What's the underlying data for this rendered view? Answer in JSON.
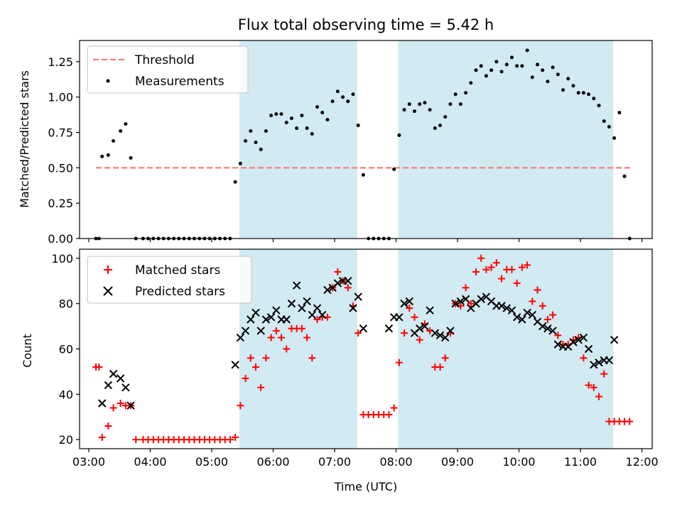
{
  "chart_data": [
    {
      "type": "scatter",
      "title": "Flux total observing time = 5.42 h",
      "xlabel": "",
      "ylabel": "Matched/Predicted stars",
      "ylim": [
        0,
        1.4
      ],
      "xlim": [
        "02:51",
        "12:10"
      ],
      "yticks": [
        "0.00",
        "0.25",
        "0.50",
        "0.75",
        "1.00",
        "1.25"
      ],
      "legend_position": "top-left",
      "threshold": {
        "name": "Threshold",
        "value": 0.5,
        "x_start": "03:07",
        "x_end": "11:49",
        "color": "#f08080"
      },
      "shaded_regions": [
        {
          "start": "05:27",
          "end": "07:22",
          "color": "#add8e6"
        },
        {
          "start": "08:02",
          "end": "11:32",
          "color": "#add8e6"
        }
      ],
      "series": [
        {
          "name": "Measurements",
          "marker": "dot",
          "color": "#000000",
          "x": [
            "03:07",
            "03:10",
            "03:13",
            "03:19",
            "03:24",
            "03:31",
            "03:36",
            "03:41",
            "03:46",
            "03:53",
            "03:58",
            "04:03",
            "04:08",
            "04:13",
            "04:18",
            "04:23",
            "04:28",
            "04:33",
            "04:38",
            "04:43",
            "04:48",
            "04:53",
            "04:58",
            "05:03",
            "05:08",
            "05:13",
            "05:18",
            "05:23",
            "05:28",
            "05:33",
            "05:38",
            "05:43",
            "05:48",
            "05:53",
            "05:58",
            "06:03",
            "06:08",
            "06:13",
            "06:18",
            "06:23",
            "06:28",
            "06:33",
            "06:38",
            "06:43",
            "06:48",
            "06:53",
            "06:58",
            "07:03",
            "07:08",
            "07:13",
            "07:18",
            "07:23",
            "07:28",
            "07:33",
            "07:38",
            "07:43",
            "07:48",
            "07:53",
            "07:58",
            "08:03",
            "08:08",
            "08:13",
            "08:18",
            "08:23",
            "08:28",
            "08:33",
            "08:38",
            "08:43",
            "08:48",
            "08:53",
            "08:58",
            "09:03",
            "09:08",
            "09:13",
            "09:18",
            "09:23",
            "09:28",
            "09:33",
            "09:38",
            "09:43",
            "09:48",
            "09:53",
            "09:58",
            "10:03",
            "10:08",
            "10:13",
            "10:18",
            "10:23",
            "10:28",
            "10:33",
            "10:38",
            "10:43",
            "10:48",
            "10:53",
            "10:58",
            "11:03",
            "11:08",
            "11:13",
            "11:18",
            "11:23",
            "11:28",
            "11:33",
            "11:38",
            "11:43",
            "11:48"
          ],
          "y": [
            0.0,
            0.0,
            0.58,
            0.59,
            0.69,
            0.76,
            0.81,
            0.57,
            0.0,
            0.0,
            0.0,
            0.0,
            0.0,
            0.0,
            0.0,
            0.0,
            0.0,
            0.0,
            0.0,
            0.0,
            0.0,
            0.0,
            0.0,
            0.0,
            0.0,
            0.0,
            0.0,
            0.4,
            0.53,
            0.69,
            0.76,
            0.68,
            0.63,
            0.76,
            0.87,
            0.88,
            0.88,
            0.82,
            0.85,
            0.78,
            0.87,
            0.78,
            0.74,
            0.93,
            0.89,
            0.84,
            0.97,
            1.04,
            1.0,
            0.97,
            1.02,
            0.8,
            0.45,
            0.0,
            0.0,
            0.0,
            0.0,
            0.0,
            0.49,
            0.73,
            0.91,
            0.95,
            0.9,
            0.95,
            0.96,
            0.91,
            0.78,
            0.8,
            0.86,
            0.95,
            1.02,
            0.95,
            1.03,
            1.1,
            1.19,
            1.22,
            1.15,
            1.19,
            1.25,
            1.18,
            1.23,
            1.28,
            1.22,
            1.22,
            1.33,
            1.14,
            1.23,
            1.19,
            1.11,
            1.21,
            1.16,
            1.05,
            1.13,
            1.08,
            1.03,
            1.03,
            1.02,
            0.99,
            0.94,
            0.83,
            0.79,
            0.71,
            0.89,
            0.44,
            0.0
          ]
        }
      ]
    },
    {
      "type": "scatter",
      "title": "",
      "xlabel": "Time (UTC)",
      "ylabel": "Count",
      "ylim": [
        16,
        104
      ],
      "xlim": [
        "02:51",
        "12:10"
      ],
      "yticks": [
        "20",
        "40",
        "60",
        "80",
        "100"
      ],
      "xticks": [
        "03:00",
        "04:00",
        "05:00",
        "06:00",
        "07:00",
        "08:00",
        "09:00",
        "10:00",
        "11:00",
        "12:00"
      ],
      "legend_position": "top-left",
      "shaded_regions": [
        {
          "start": "05:27",
          "end": "07:22",
          "color": "#add8e6"
        },
        {
          "start": "08:02",
          "end": "11:32",
          "color": "#add8e6"
        }
      ],
      "series": [
        {
          "name": "Matched stars",
          "marker": "plus",
          "color": "#ff0000",
          "x": [
            "03:07",
            "03:10",
            "03:13",
            "03:19",
            "03:24",
            "03:31",
            "03:36",
            "03:41",
            "03:46",
            "03:53",
            "03:58",
            "04:03",
            "04:08",
            "04:13",
            "04:18",
            "04:23",
            "04:28",
            "04:33",
            "04:38",
            "04:43",
            "04:48",
            "04:53",
            "04:58",
            "05:03",
            "05:08",
            "05:13",
            "05:18",
            "05:23",
            "05:28",
            "05:33",
            "05:38",
            "05:43",
            "05:48",
            "05:53",
            "05:58",
            "06:03",
            "06:08",
            "06:13",
            "06:18",
            "06:23",
            "06:28",
            "06:33",
            "06:38",
            "06:43",
            "06:48",
            "06:53",
            "06:58",
            "07:03",
            "07:08",
            "07:13",
            "07:18",
            "07:23",
            "07:28",
            "07:33",
            "07:38",
            "07:43",
            "07:48",
            "07:53",
            "07:58",
            "08:03",
            "08:08",
            "08:13",
            "08:18",
            "08:23",
            "08:28",
            "08:33",
            "08:38",
            "08:43",
            "08:48",
            "08:53",
            "08:58",
            "09:03",
            "09:08",
            "09:13",
            "09:18",
            "09:23",
            "09:28",
            "09:33",
            "09:38",
            "09:43",
            "09:48",
            "09:53",
            "09:58",
            "10:03",
            "10:08",
            "10:13",
            "10:18",
            "10:23",
            "10:28",
            "10:33",
            "10:38",
            "10:43",
            "10:48",
            "10:53",
            "10:58",
            "11:03",
            "11:08",
            "11:13",
            "11:18",
            "11:23",
            "11:28",
            "11:33",
            "11:38",
            "11:43",
            "11:48"
          ],
          "y": [
            52,
            52,
            21,
            26,
            34,
            36,
            35,
            35,
            20,
            20,
            20,
            20,
            20,
            20,
            20,
            20,
            20,
            20,
            20,
            20,
            20,
            20,
            20,
            20,
            20,
            20,
            20,
            21,
            35,
            47,
            56,
            52,
            43,
            56,
            65,
            68,
            65,
            60,
            69,
            69,
            69,
            65,
            56,
            73,
            74,
            74,
            87,
            94,
            90,
            87,
            79,
            67,
            31,
            31,
            31,
            31,
            31,
            31,
            34,
            54,
            67,
            78,
            74,
            64,
            71,
            68,
            52,
            52,
            56,
            67,
            80,
            79,
            87,
            80,
            94,
            100,
            95,
            96,
            98,
            91,
            95,
            95,
            89,
            96,
            97,
            81,
            86,
            79,
            73,
            75,
            66,
            62,
            62,
            64,
            65,
            56,
            44,
            43,
            39,
            49,
            28,
            28,
            28,
            28,
            28
          ]
        },
        {
          "name": "Predicted stars",
          "marker": "x",
          "color": "#000000",
          "x": [
            "03:13",
            "03:19",
            "03:24",
            "03:31",
            "03:36",
            "03:41",
            "05:23",
            "05:28",
            "05:33",
            "05:38",
            "05:43",
            "05:48",
            "05:53",
            "05:58",
            "06:03",
            "06:08",
            "06:13",
            "06:18",
            "06:23",
            "06:28",
            "06:33",
            "06:38",
            "06:43",
            "06:48",
            "06:53",
            "06:58",
            "07:03",
            "07:08",
            "07:13",
            "07:18",
            "07:23",
            "07:28",
            "07:53",
            "07:58",
            "08:03",
            "08:08",
            "08:13",
            "08:18",
            "08:23",
            "08:28",
            "08:33",
            "08:38",
            "08:43",
            "08:48",
            "08:53",
            "08:58",
            "09:03",
            "09:08",
            "09:13",
            "09:18",
            "09:23",
            "09:28",
            "09:33",
            "09:38",
            "09:43",
            "09:48",
            "09:53",
            "09:58",
            "10:03",
            "10:08",
            "10:13",
            "10:18",
            "10:23",
            "10:28",
            "10:33",
            "10:38",
            "10:43",
            "10:48",
            "10:53",
            "10:58",
            "11:03",
            "11:08",
            "11:13",
            "11:18",
            "11:23",
            "11:28",
            "11:33"
          ],
          "y": [
            36,
            44,
            49,
            47,
            43,
            35,
            53,
            65,
            68,
            73,
            76,
            68,
            73,
            74,
            77,
            73,
            73,
            80,
            88,
            78,
            81,
            75,
            78,
            75,
            86,
            87,
            89,
            90,
            90,
            78,
            83,
            69,
            69,
            74,
            74,
            80,
            81,
            67,
            69,
            70,
            77,
            67,
            66,
            65,
            68,
            80,
            81,
            82,
            78,
            80,
            82,
            83,
            81,
            79,
            79,
            78,
            77,
            74,
            73,
            76,
            75,
            72,
            70,
            69,
            68,
            62,
            61,
            61,
            63,
            64,
            65,
            60,
            53,
            54,
            55,
            55,
            64
          ]
        }
      ]
    }
  ],
  "legend": {
    "top": [
      "Threshold",
      "Measurements"
    ],
    "bottom": [
      "Matched stars",
      "Predicted stars"
    ]
  }
}
